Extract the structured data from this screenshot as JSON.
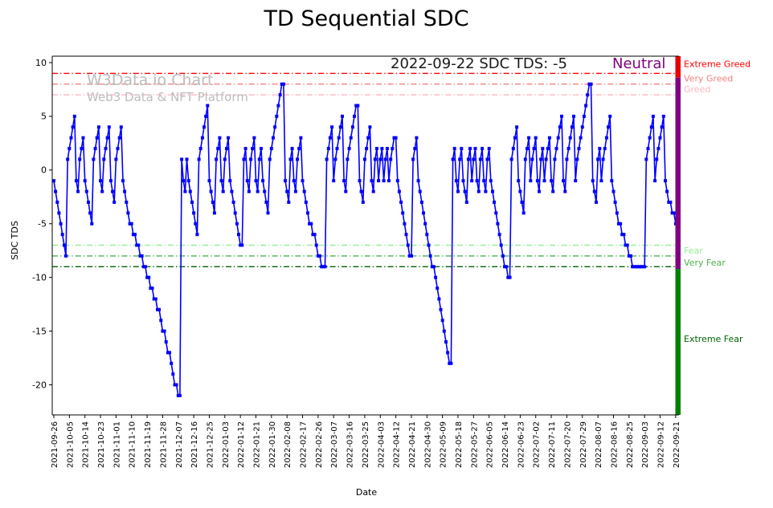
{
  "title": "TD Sequential SDC",
  "annotation": {
    "text": "2022-09-22 SDC TDS: -5",
    "state": "Neutral",
    "state_color": "#800080"
  },
  "watermark": {
    "line1": "W3Data.io Chart",
    "line2": "Web3 Data & NFT Platform",
    "color": "#bcbcbc"
  },
  "chart_data": {
    "type": "line",
    "title": "TD Sequential SDC",
    "xlabel": "Date",
    "ylabel": "SDC TDS",
    "series_name": "SDC TDS",
    "line_color": "#0000ff",
    "marker": "square",
    "x_start_date": "2021-09-26",
    "x_tick_interval_days": 9,
    "x_tick_labels": [
      "2021-09-26",
      "2021-10-05",
      "2021-10-14",
      "2021-10-23",
      "2021-11-01",
      "2021-11-10",
      "2021-11-19",
      "2021-11-28",
      "2021-12-07",
      "2021-12-16",
      "2021-12-25",
      "2022-01-03",
      "2022-01-12",
      "2022-01-21",
      "2022-01-30",
      "2022-02-08",
      "2022-02-17",
      "2022-02-26",
      "2022-03-07",
      "2022-03-16",
      "2022-03-25",
      "2022-04-03",
      "2022-04-12",
      "2022-04-21",
      "2022-04-30",
      "2022-05-09",
      "2022-05-18",
      "2022-05-27",
      "2022-06-05",
      "2022-06-14",
      "2022-06-23",
      "2022-07-02",
      "2022-07-11",
      "2022-07-20",
      "2022-07-29",
      "2022-08-07",
      "2022-08-16",
      "2022-08-25",
      "2022-09-03",
      "2022-09-12",
      "2022-09-21"
    ],
    "y_ticks": [
      10,
      5,
      0,
      -5,
      -10,
      -15,
      -20
    ],
    "ylim": [
      -22.8,
      10.6
    ],
    "grid": false,
    "legend": false,
    "values": [
      -1,
      -2,
      -3,
      -4,
      -5,
      -6,
      -7,
      -8,
      1,
      2,
      3,
      4,
      5,
      -1,
      -2,
      1,
      2,
      3,
      -1,
      -2,
      -3,
      -4,
      -5,
      1,
      2,
      3,
      4,
      -1,
      -2,
      1,
      2,
      3,
      4,
      -1,
      -2,
      -3,
      1,
      2,
      3,
      4,
      -1,
      -2,
      -3,
      -4,
      -5,
      -5,
      -6,
      -6,
      -7,
      -7,
      -8,
      -8,
      -9,
      -9,
      -10,
      -10,
      -11,
      -11,
      -12,
      -12,
      -13,
      -13,
      -14,
      -15,
      -15,
      -16,
      -17,
      -17,
      -18,
      -19,
      -20,
      -20,
      -21,
      -21,
      1,
      -1,
      -2,
      1,
      -1,
      -2,
      -3,
      -4,
      -5,
      -6,
      1,
      2,
      3,
      4,
      5,
      6,
      -1,
      -2,
      -3,
      -4,
      1,
      2,
      3,
      -1,
      -2,
      1,
      2,
      3,
      -1,
      -2,
      -3,
      -4,
      -5,
      -6,
      -7,
      -7,
      1,
      2,
      -1,
      -2,
      1,
      2,
      3,
      -1,
      -2,
      1,
      2,
      -1,
      -2,
      -3,
      -4,
      1,
      2,
      3,
      4,
      5,
      6,
      7,
      8,
      8,
      -1,
      -2,
      -3,
      1,
      2,
      -1,
      -2,
      1,
      2,
      3,
      -1,
      -2,
      -3,
      -4,
      -5,
      -5,
      -6,
      -6,
      -7,
      -8,
      -8,
      -9,
      -9,
      -9,
      1,
      2,
      3,
      4,
      -1,
      1,
      2,
      3,
      4,
      5,
      -1,
      -2,
      1,
      2,
      3,
      4,
      5,
      6,
      6,
      -1,
      -2,
      -3,
      1,
      2,
      3,
      4,
      -1,
      -2,
      1,
      2,
      -1,
      1,
      2,
      -1,
      1,
      2,
      -1,
      1,
      2,
      3,
      3,
      -1,
      -2,
      -3,
      -4,
      -5,
      -6,
      -7,
      -8,
      -8,
      1,
      2,
      3,
      -1,
      -2,
      -3,
      -4,
      -5,
      -6,
      -7,
      -8,
      -9,
      -9,
      -10,
      -11,
      -12,
      -13,
      -14,
      -15,
      -16,
      -17,
      -18,
      -18,
      1,
      2,
      -1,
      -2,
      1,
      2,
      -1,
      -2,
      -3,
      1,
      2,
      -1,
      1,
      2,
      -1,
      -2,
      1,
      2,
      -1,
      -2,
      1,
      2,
      -1,
      -2,
      -3,
      -4,
      -5,
      -6,
      -7,
      -8,
      -9,
      -9,
      -10,
      -10,
      1,
      2,
      3,
      4,
      -1,
      -2,
      -3,
      -4,
      1,
      2,
      3,
      -1,
      1,
      2,
      3,
      -1,
      -2,
      1,
      2,
      -1,
      1,
      2,
      3,
      -1,
      -2,
      1,
      2,
      3,
      4,
      5,
      -1,
      -2,
      1,
      2,
      3,
      4,
      5,
      -1,
      1,
      2,
      3,
      4,
      5,
      6,
      7,
      8,
      8,
      -1,
      -2,
      -3,
      1,
      2,
      -1,
      1,
      2,
      3,
      4,
      5,
      -1,
      -2,
      -3,
      -4,
      -5,
      -5,
      -6,
      -6,
      -7,
      -7,
      -8,
      -8,
      -9,
      -9,
      -9,
      -9,
      -9,
      -9,
      -9,
      -9,
      1,
      2,
      3,
      4,
      5,
      -1,
      1,
      2,
      3,
      4,
      5,
      -1,
      -2,
      -3,
      -3,
      -4,
      -4,
      -5,
      -5
    ],
    "threshold_lines": [
      {
        "value": 9,
        "label": "Extreme Greed",
        "color": "#ff0000",
        "label_value": 9.9
      },
      {
        "value": 8,
        "label": "Very Greed",
        "color": "#f08080",
        "label_value": 8.55
      },
      {
        "value": 7,
        "label": "Greed",
        "color": "#ffb6c1",
        "label_value": 7.55
      },
      {
        "value": -7,
        "label": "Fear",
        "color": "#90ee90",
        "label_value": -7.5
      },
      {
        "value": -8,
        "label": "Very Fear",
        "color": "#4caf50",
        "label_value": -8.6
      },
      {
        "value": -9,
        "label": "Extreme Fear",
        "color": "#006400",
        "label_value": -15.7
      }
    ],
    "sentiment_bar": {
      "segments": [
        {
          "from": 10.6,
          "to": 8.6,
          "color": "#e60000"
        },
        {
          "from": 8.6,
          "to": -9.2,
          "color": "#800080"
        },
        {
          "from": -9.2,
          "to": -22.8,
          "color": "#008000"
        }
      ]
    }
  }
}
